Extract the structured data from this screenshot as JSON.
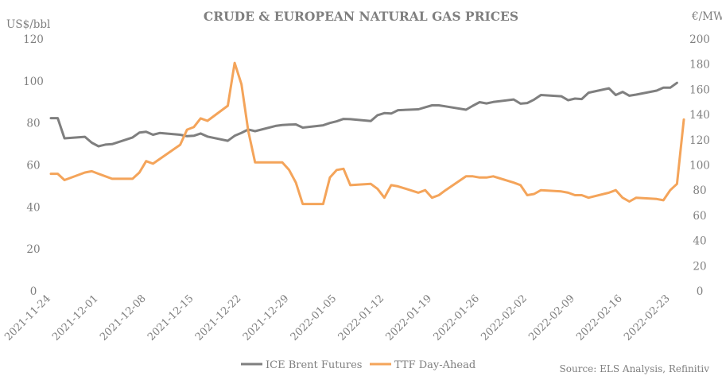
{
  "chart_data": {
    "type": "line",
    "title": "CRUDE & EUROPEAN NATURAL GAS PRICES",
    "y_left_label": "US$/bbl",
    "y_right_label": "€/MWh",
    "y_left_lim": [
      0,
      120
    ],
    "y_right_lim": [
      0,
      200
    ],
    "y_left_ticks": [
      "0",
      "20",
      "40",
      "60",
      "80",
      "100",
      "120"
    ],
    "y_right_ticks": [
      "0",
      "20",
      "40",
      "60",
      "80",
      "100",
      "120",
      "140",
      "160",
      "180",
      "200"
    ],
    "x_ticks": [
      "2021-11-24",
      "2021-12-01",
      "2021-12-08",
      "2021-12-15",
      "2021-12-22",
      "2021-12-29",
      "2022-01-05",
      "2022-01-12",
      "2022-01-19",
      "2022-01-26",
      "2022-02-02",
      "2022-02-09",
      "2022-02-16",
      "2022-02-23"
    ],
    "x_start": "2021-11-24",
    "x_end": "2022-02-25",
    "gridlines": false,
    "legend_position": "bottom",
    "source": "Source: ELS Analysis, Refinitiv",
    "series": [
      {
        "name": "ICE Brent Futures",
        "axis": "left",
        "color": "#7f7f7f",
        "points": [
          [
            "2021-11-24",
            82.3
          ],
          [
            "2021-11-25",
            82.3
          ],
          [
            "2021-11-26",
            72.7
          ],
          [
            "2021-11-29",
            73.4
          ],
          [
            "2021-11-30",
            70.6
          ],
          [
            "2021-12-01",
            68.9
          ],
          [
            "2021-12-02",
            69.7
          ],
          [
            "2021-12-03",
            69.9
          ],
          [
            "2021-12-06",
            73.1
          ],
          [
            "2021-12-07",
            75.4
          ],
          [
            "2021-12-08",
            75.8
          ],
          [
            "2021-12-09",
            74.4
          ],
          [
            "2021-12-10",
            75.2
          ],
          [
            "2021-12-13",
            74.4
          ],
          [
            "2021-12-14",
            73.7
          ],
          [
            "2021-12-15",
            73.9
          ],
          [
            "2021-12-16",
            75.0
          ],
          [
            "2021-12-17",
            73.5
          ],
          [
            "2021-12-20",
            71.5
          ],
          [
            "2021-12-21",
            73.9
          ],
          [
            "2021-12-22",
            75.3
          ],
          [
            "2021-12-23",
            76.9
          ],
          [
            "2021-12-24",
            76.1
          ],
          [
            "2021-12-27",
            78.6
          ],
          [
            "2021-12-28",
            79.0
          ],
          [
            "2021-12-29",
            79.2
          ],
          [
            "2021-12-30",
            79.3
          ],
          [
            "2021-12-31",
            77.8
          ],
          [
            "2022-01-03",
            78.9
          ],
          [
            "2022-01-04",
            80.0
          ],
          [
            "2022-01-05",
            80.8
          ],
          [
            "2022-01-06",
            81.9
          ],
          [
            "2022-01-07",
            81.8
          ],
          [
            "2022-01-10",
            80.9
          ],
          [
            "2022-01-11",
            83.7
          ],
          [
            "2022-01-12",
            84.7
          ],
          [
            "2022-01-13",
            84.5
          ],
          [
            "2022-01-14",
            86.1
          ],
          [
            "2022-01-17",
            86.5
          ],
          [
            "2022-01-18",
            87.5
          ],
          [
            "2022-01-19",
            88.4
          ],
          [
            "2022-01-20",
            88.4
          ],
          [
            "2022-01-21",
            87.9
          ],
          [
            "2022-01-24",
            86.3
          ],
          [
            "2022-01-25",
            88.2
          ],
          [
            "2022-01-26",
            89.9
          ],
          [
            "2022-01-27",
            89.3
          ],
          [
            "2022-01-28",
            90.0
          ],
          [
            "2022-01-31",
            91.2
          ],
          [
            "2022-02-01",
            89.2
          ],
          [
            "2022-02-02",
            89.5
          ],
          [
            "2022-02-03",
            91.1
          ],
          [
            "2022-02-04",
            93.3
          ],
          [
            "2022-02-07",
            92.7
          ],
          [
            "2022-02-08",
            90.8
          ],
          [
            "2022-02-09",
            91.6
          ],
          [
            "2022-02-10",
            91.4
          ],
          [
            "2022-02-11",
            94.4
          ],
          [
            "2022-02-14",
            96.5
          ],
          [
            "2022-02-15",
            93.3
          ],
          [
            "2022-02-16",
            94.8
          ],
          [
            "2022-02-17",
            92.97
          ],
          [
            "2022-02-18",
            93.5
          ],
          [
            "2022-02-21",
            95.4
          ],
          [
            "2022-02-22",
            96.8
          ],
          [
            "2022-02-23",
            96.8
          ],
          [
            "2022-02-24",
            99.1
          ]
        ]
      },
      {
        "name": "TTF Day-Ahead",
        "axis": "right",
        "color": "#f4a45a",
        "points": [
          [
            "2021-11-24",
            93
          ],
          [
            "2021-11-25",
            93
          ],
          [
            "2021-11-26",
            88
          ],
          [
            "2021-11-29",
            94
          ],
          [
            "2021-11-30",
            95
          ],
          [
            "2021-12-01",
            93
          ],
          [
            "2021-12-03",
            89
          ],
          [
            "2021-12-06",
            89
          ],
          [
            "2021-12-07",
            94
          ],
          [
            "2021-12-08",
            103
          ],
          [
            "2021-12-09",
            101
          ],
          [
            "2021-12-13",
            116
          ],
          [
            "2021-12-14",
            128
          ],
          [
            "2021-12-15",
            130
          ],
          [
            "2021-12-16",
            137
          ],
          [
            "2021-12-17",
            135
          ],
          [
            "2021-12-20",
            147
          ],
          [
            "2021-12-21",
            181
          ],
          [
            "2021-12-22",
            164
          ],
          [
            "2021-12-23",
            127
          ],
          [
            "2021-12-24",
            102
          ],
          [
            "2021-12-27",
            102
          ],
          [
            "2021-12-28",
            102
          ],
          [
            "2021-12-29",
            96
          ],
          [
            "2021-12-30",
            86
          ],
          [
            "2021-12-31",
            69
          ],
          [
            "2022-01-03",
            69
          ],
          [
            "2022-01-04",
            90
          ],
          [
            "2022-01-05",
            96
          ],
          [
            "2022-01-06",
            97
          ],
          [
            "2022-01-07",
            84
          ],
          [
            "2022-01-10",
            85
          ],
          [
            "2022-01-11",
            81
          ],
          [
            "2022-01-12",
            74
          ],
          [
            "2022-01-13",
            84
          ],
          [
            "2022-01-14",
            83
          ],
          [
            "2022-01-17",
            78
          ],
          [
            "2022-01-18",
            80
          ],
          [
            "2022-01-19",
            74
          ],
          [
            "2022-01-20",
            76
          ],
          [
            "2022-01-21",
            80
          ],
          [
            "2022-01-24",
            91
          ],
          [
            "2022-01-25",
            91
          ],
          [
            "2022-01-26",
            90
          ],
          [
            "2022-01-27",
            90
          ],
          [
            "2022-01-28",
            91
          ],
          [
            "2022-01-31",
            86
          ],
          [
            "2022-02-01",
            84
          ],
          [
            "2022-02-02",
            76
          ],
          [
            "2022-02-03",
            77
          ],
          [
            "2022-02-04",
            80
          ],
          [
            "2022-02-07",
            79
          ],
          [
            "2022-02-08",
            78
          ],
          [
            "2022-02-09",
            76
          ],
          [
            "2022-02-10",
            76
          ],
          [
            "2022-02-11",
            74
          ],
          [
            "2022-02-14",
            78
          ],
          [
            "2022-02-15",
            80
          ],
          [
            "2022-02-16",
            74
          ],
          [
            "2022-02-17",
            71
          ],
          [
            "2022-02-18",
            74
          ],
          [
            "2022-02-21",
            73
          ],
          [
            "2022-02-22",
            72
          ],
          [
            "2022-02-23",
            80
          ],
          [
            "2022-02-24",
            85
          ],
          [
            "2022-02-25",
            136
          ]
        ]
      }
    ]
  }
}
